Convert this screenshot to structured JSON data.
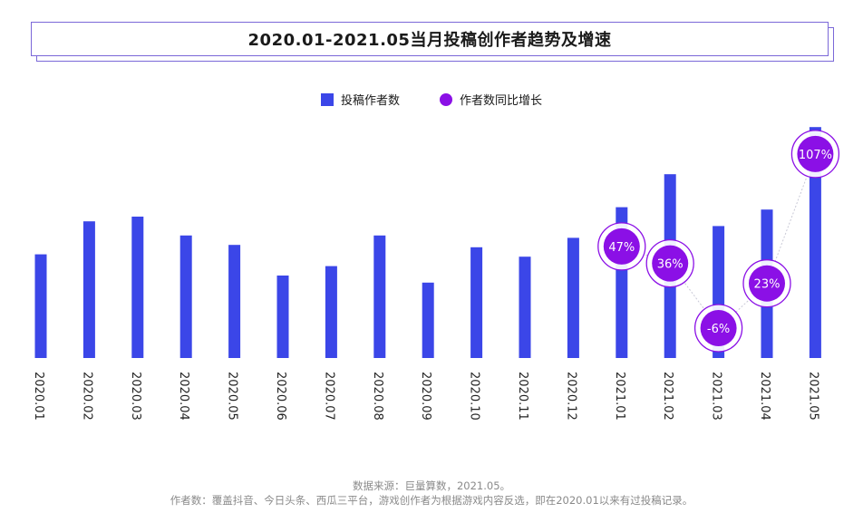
{
  "title": "2020.01-2021.05当月投稿创作者趋势及增速",
  "legend": {
    "bar_label": "投稿作者数",
    "growth_label": "作者数同比增长"
  },
  "colors": {
    "bar": "#3b46e8",
    "growth": "#8b10e6",
    "title_border": "#7b68d8"
  },
  "footer": {
    "line1": "数据来源：巨量算数，2021.05。",
    "line2": "作者数：覆盖抖音、今日头条、西瓜三平台，游戏创作者为根据游戏内容反选，即在2020.01以来有过投稿记录。"
  },
  "chart_data": {
    "type": "bar",
    "categories": [
      "2020.01",
      "2020.02",
      "2020.03",
      "2020.04",
      "2020.05",
      "2020.06",
      "2020.07",
      "2020.08",
      "2020.09",
      "2020.10",
      "2020.11",
      "2020.12",
      "2021.01",
      "2021.02",
      "2021.03",
      "2021.04",
      "2021.05"
    ],
    "series": [
      {
        "name": "投稿作者数",
        "values": [
          44,
          58,
          60,
          52,
          48,
          35,
          39,
          52,
          32,
          47,
          43,
          51,
          64,
          78,
          56,
          63,
          98
        ]
      },
      {
        "name": "作者数同比增长",
        "type": "line",
        "values": [
          null,
          null,
          null,
          null,
          null,
          null,
          null,
          null,
          null,
          null,
          null,
          null,
          47,
          36,
          -6,
          23,
          107
        ],
        "labels": [
          null,
          null,
          null,
          null,
          null,
          null,
          null,
          null,
          null,
          null,
          null,
          null,
          "47%",
          "36%",
          "-6%",
          "23%",
          "107%"
        ]
      }
    ],
    "axis_ticks_shown": false,
    "grid": false,
    "legend_position": "top-center"
  }
}
